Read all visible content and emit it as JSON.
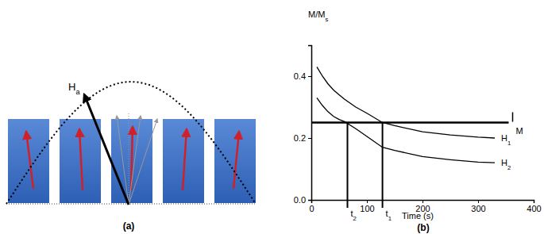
{
  "diagram": {
    "label": "(a)",
    "field_label": {
      "text": "H",
      "subscript": "a"
    }
  },
  "chart_data": {
    "type": "line",
    "title": "(b)",
    "x_label": "Time (s)",
    "y_label": {
      "text": "M/M",
      "subscript": "s"
    },
    "x": [
      10,
      20,
      30,
      40,
      50,
      60,
      80,
      100,
      128,
      150,
      200,
      250,
      300,
      330
    ],
    "series": [
      {
        "name": {
          "text": "H",
          "subscript": "1"
        },
        "color": "#000000",
        "values": [
          0.43,
          0.4,
          0.375,
          0.355,
          0.34,
          0.325,
          0.3,
          0.28,
          0.25,
          0.24,
          0.22,
          0.21,
          0.203,
          0.2
        ]
      },
      {
        "name": {
          "text": "H",
          "subscript": "2"
        },
        "color": "#000000",
        "values": [
          0.33,
          0.305,
          0.285,
          0.27,
          0.26,
          0.253,
          0.23,
          0.205,
          0.17,
          0.16,
          0.14,
          0.13,
          0.122,
          0.12
        ]
      }
    ],
    "xlim": [
      0,
      400
    ],
    "xticks": [
      0,
      100,
      200,
      300,
      400
    ],
    "ylim": [
      0,
      0.5
    ],
    "yticks": [
      {
        "value": 0,
        "label": "0.0"
      },
      {
        "value": 0.2,
        "label": "0.2"
      },
      {
        "value": 0.4,
        "label": "0.4"
      }
    ],
    "annotations": [
      {
        "y": 0.25,
        "x": [
          0,
          355
        ],
        "label": "M"
      },
      {
        "x": 65,
        "y": 0.25,
        "label": {
          "text": "t",
          "subscript": "2"
        }
      },
      {
        "x": 128,
        "y": 0.25,
        "label": {
          "text": "t",
          "subscript": "1"
        }
      }
    ]
  }
}
